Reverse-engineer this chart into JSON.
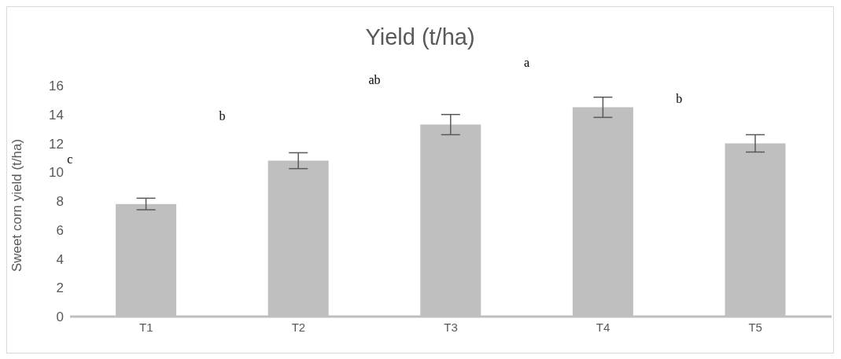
{
  "chart_data": {
    "type": "bar",
    "title": "Yield (t/ha)",
    "ylabel": "Sweet corn  yield (t/ha)",
    "categories": [
      "T1",
      "T2",
      "T3",
      "T4",
      "T5"
    ],
    "values": [
      7.8,
      10.8,
      13.3,
      14.5,
      12.0
    ],
    "errors": [
      0.4,
      0.55,
      0.7,
      0.7,
      0.6
    ],
    "color": "#bfbfbf",
    "ylim": [
      0,
      16
    ],
    "yticks": [
      0,
      2,
      4,
      6,
      8,
      10,
      12,
      14,
      16
    ],
    "annotations": [
      "c",
      "b",
      "ab",
      "a",
      "b"
    ]
  }
}
